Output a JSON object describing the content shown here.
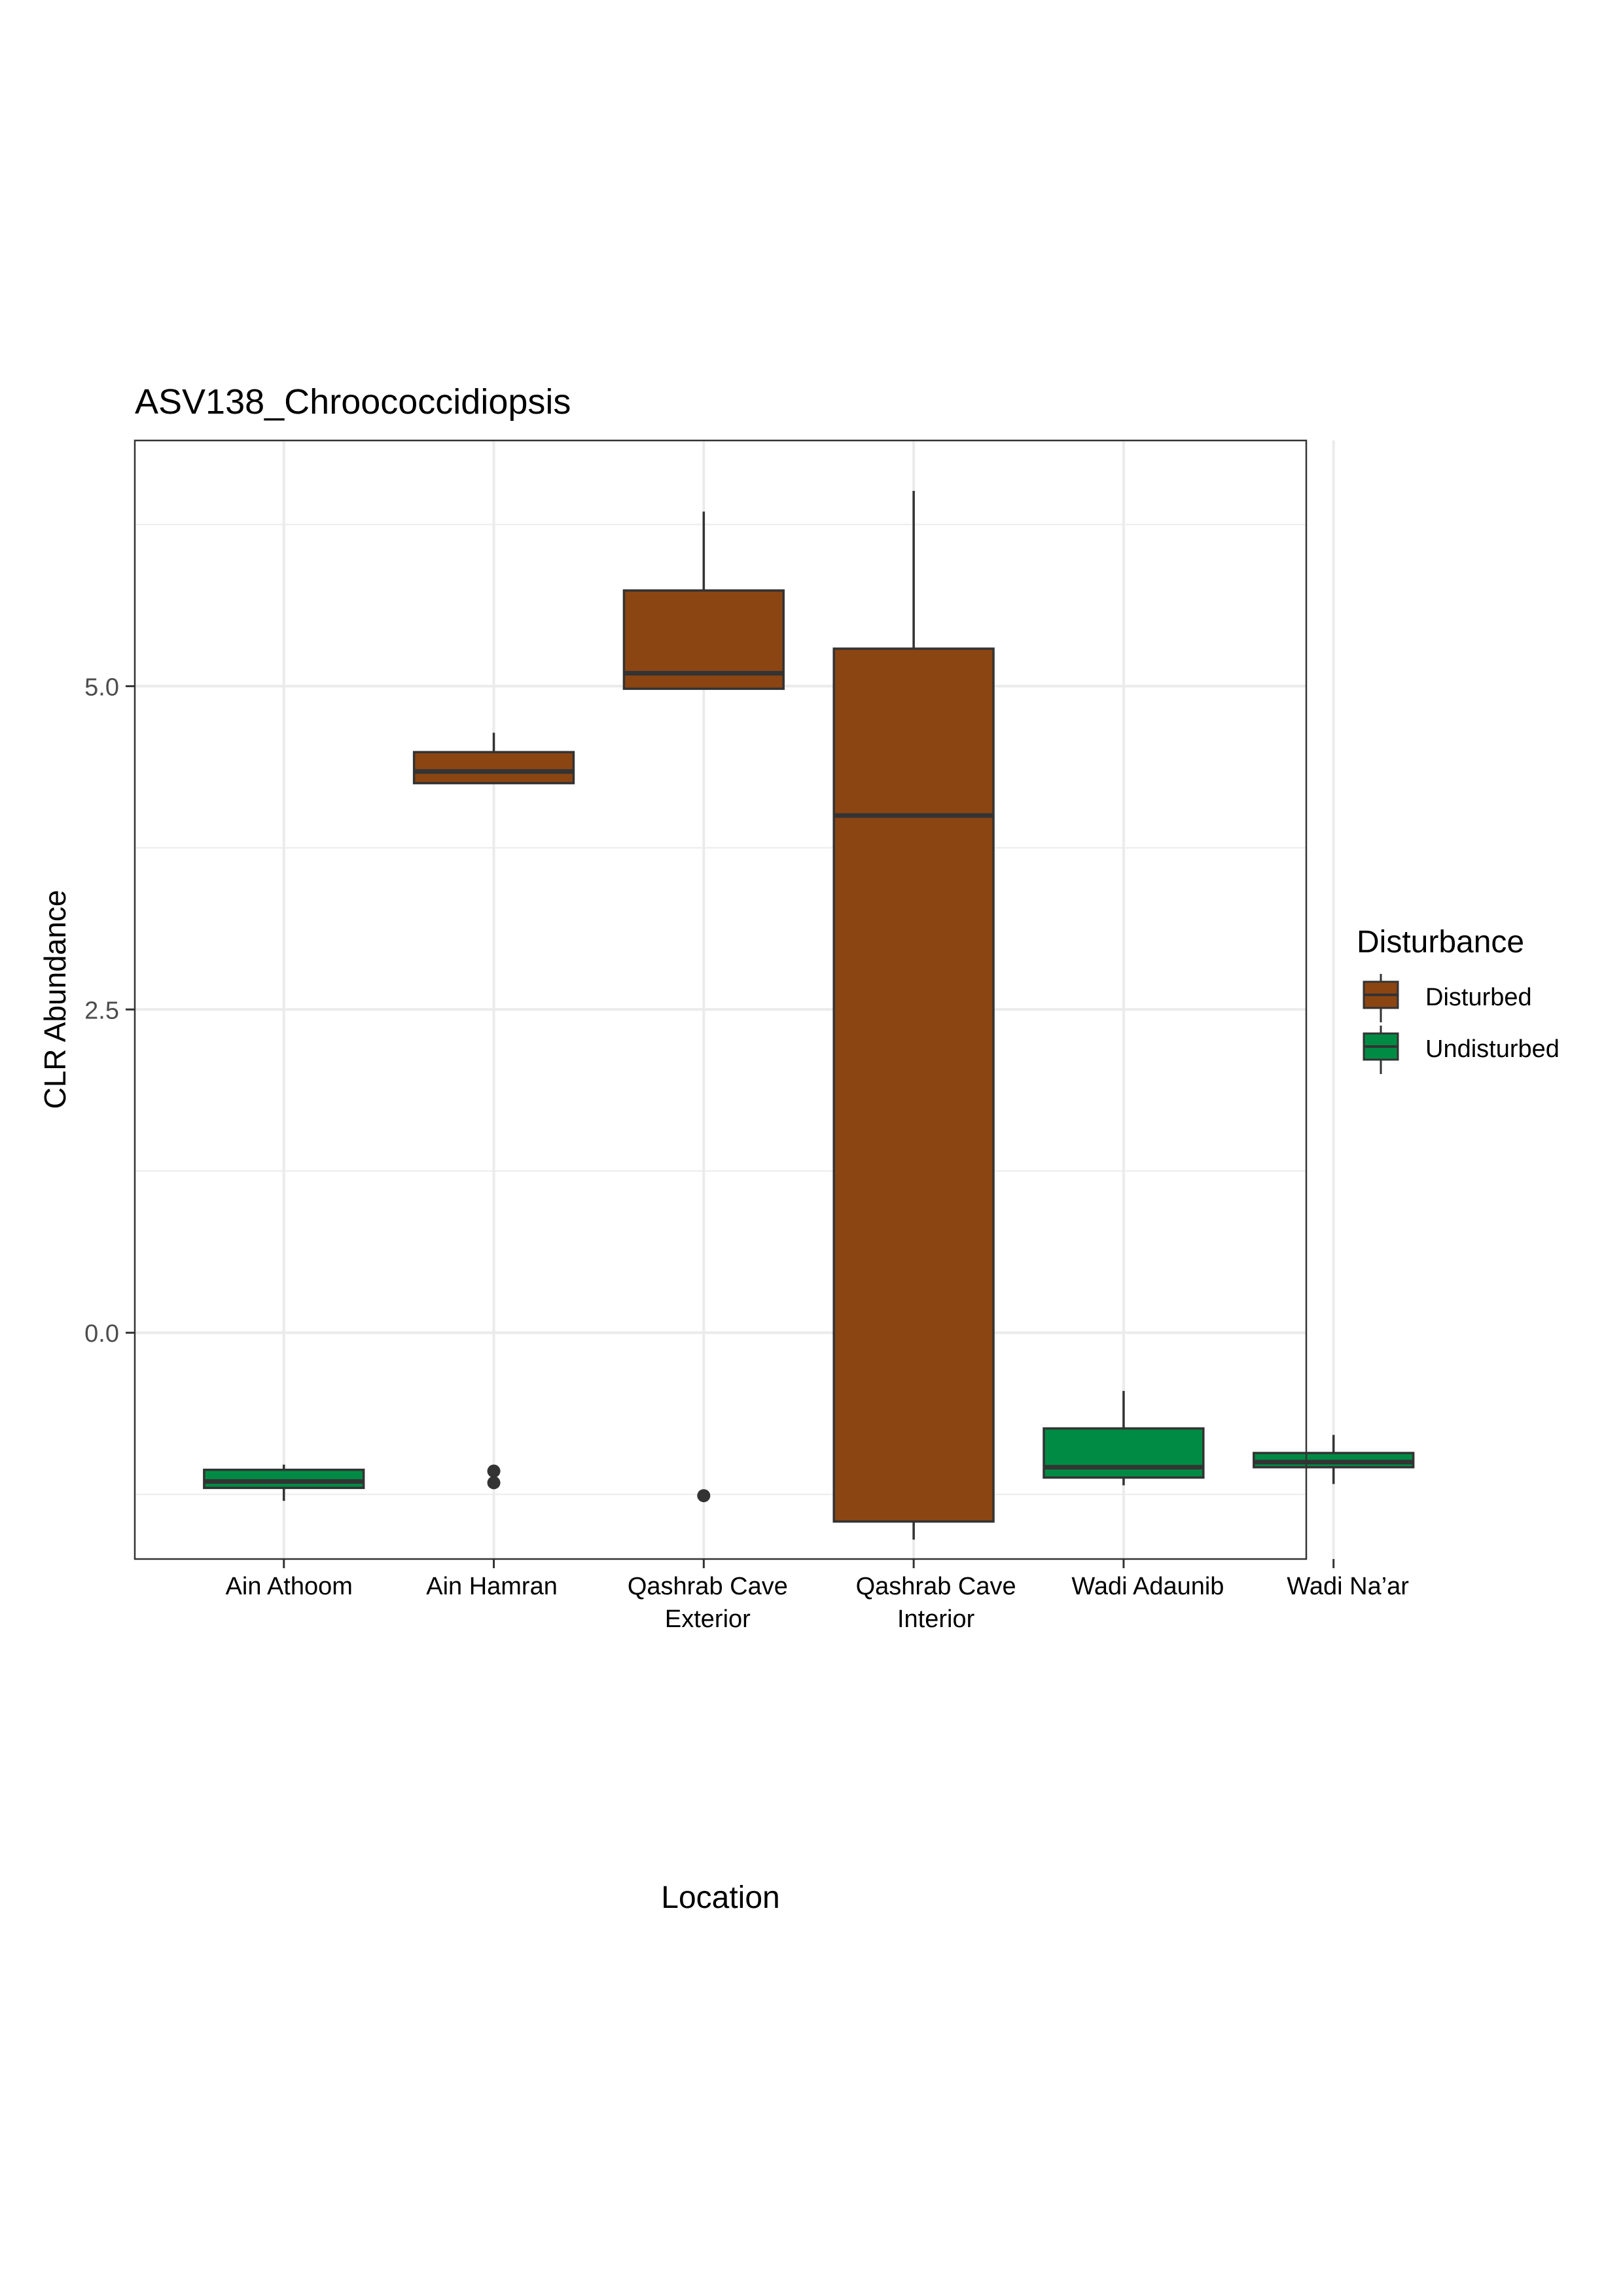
{
  "chart_data": {
    "type": "boxplot",
    "title": "ASV138_Chroococcidiopsis",
    "xlabel": "Location",
    "ylabel": "CLR Abundance",
    "ylim": [
      -1.75,
      6.9
    ],
    "yticks": [
      0.0,
      2.5,
      5.0
    ],
    "ytick_labels": [
      "0.0",
      "2.5",
      "5.0"
    ],
    "grid": true,
    "legend": {
      "title": "Disturbance",
      "placement": "right",
      "entries": [
        {
          "label": "Disturbed",
          "color": "#8B4513"
        },
        {
          "label": "Undisturbed",
          "color": "#008B45"
        }
      ]
    },
    "categories": [
      {
        "lines": [
          "Ain Athoom"
        ]
      },
      {
        "lines": [
          "Ain Hamran"
        ]
      },
      {
        "lines": [
          "Qashrab Cave",
          "Exterior"
        ]
      },
      {
        "lines": [
          "Qashrab Cave",
          "Interior"
        ]
      },
      {
        "lines": [
          "Wadi Adaunib"
        ]
      },
      {
        "lines": [
          "Wadi Na’ar"
        ]
      }
    ],
    "boxes": [
      {
        "group": "Undisturbed",
        "whisker_low": -1.3,
        "q1": -1.2,
        "median": -1.15,
        "q3": -1.06,
        "whisker_high": -1.02,
        "outliers": []
      },
      {
        "group": "Disturbed",
        "whisker_low": 4.25,
        "q1": 4.25,
        "median": 4.34,
        "q3": 4.49,
        "whisker_high": 4.64,
        "outliers": [
          -1.07,
          -1.16
        ]
      },
      {
        "group": "Disturbed",
        "whisker_low": 4.98,
        "q1": 4.98,
        "median": 5.1,
        "q3": 5.74,
        "whisker_high": 6.35,
        "outliers": [
          -1.26
        ]
      },
      {
        "group": "Disturbed",
        "whisker_low": -1.6,
        "q1": -1.46,
        "median": 4.0,
        "q3": 5.29,
        "whisker_high": 6.51,
        "outliers": []
      },
      {
        "group": "Undisturbed",
        "whisker_low": -1.18,
        "q1": -1.12,
        "median": -1.04,
        "q3": -0.74,
        "whisker_high": -0.45,
        "outliers": []
      },
      {
        "group": "Undisturbed",
        "whisker_low": -1.17,
        "q1": -1.04,
        "median": -1.0,
        "q3": -0.93,
        "whisker_high": -0.79,
        "outliers": []
      }
    ]
  }
}
